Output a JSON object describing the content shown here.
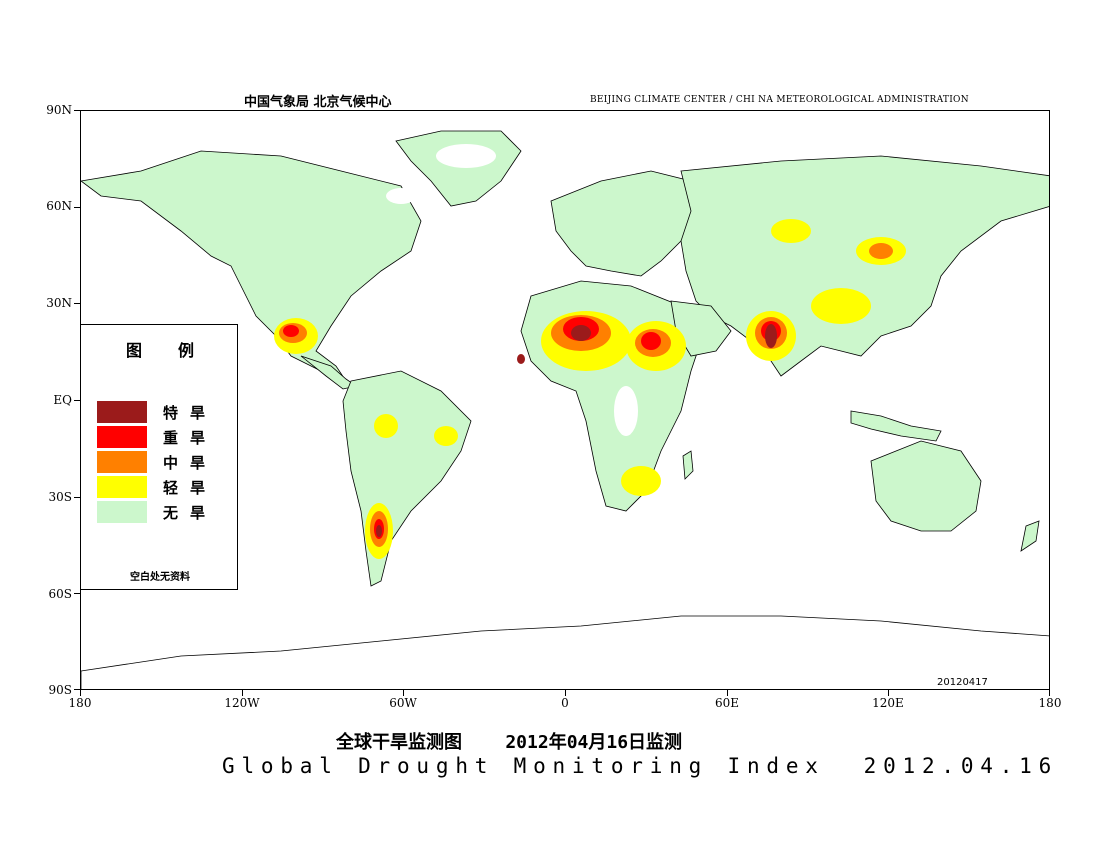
{
  "header": {
    "left_cn": "中国气象局   北京气候中心",
    "right_en": "BEIJING CLIMATE CENTER / CHI NA METEOROLOGICAL ADMINISTRATION"
  },
  "axes": {
    "lat_labels": [
      "90N",
      "60N",
      "30N",
      "EQ",
      "30S",
      "60S",
      "90S"
    ],
    "lon_labels": [
      "180",
      "120W",
      "60W",
      "0",
      "60E",
      "120E",
      "180"
    ]
  },
  "legend": {
    "title": "图例",
    "items": [
      {
        "label": "特旱",
        "color": "#9b1b1b"
      },
      {
        "label": "重旱",
        "color": "#ff0000"
      },
      {
        "label": "中旱",
        "color": "#ff8000"
      },
      {
        "label": "轻旱",
        "color": "#ffff00"
      },
      {
        "label": "无旱",
        "color": "#ccf7cc"
      }
    ],
    "note": "空白处无资料"
  },
  "map": {
    "land_color": "#ccf7cc",
    "stamp": "20120417"
  },
  "title": {
    "cn": "全球干旱监测图    2012年04月16日监测",
    "en": "Global Drought Monitoring Index  2012.04.16"
  }
}
